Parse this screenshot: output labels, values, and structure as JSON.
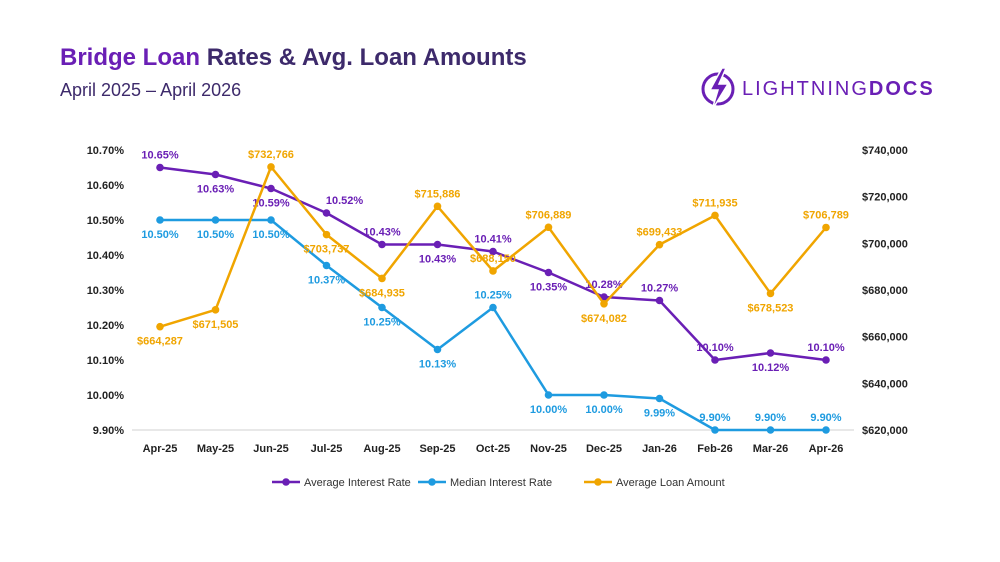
{
  "header": {
    "title_part1": "Bridge Loan",
    "title_part2": "Rates & Avg. Loan Amounts",
    "subtitle": "April 2025 – April 2026"
  },
  "logo": {
    "text_light": "LIGHTNING",
    "text_bold": "DOCS",
    "icon": "lightning-bolt-icon"
  },
  "colors": {
    "avg_rate": "#6a1fb5",
    "median_rate": "#1e9be0",
    "loan_amount": "#f0a500",
    "title": "#3d2a6b"
  },
  "chart_data": {
    "type": "line",
    "categories": [
      "Apr-25",
      "May-25",
      "Jun-25",
      "Jul-25",
      "Aug-25",
      "Sep-25",
      "Oct-25",
      "Nov-25",
      "Dec-25",
      "Jan-26",
      "Feb-26",
      "Mar-26",
      "Apr-26"
    ],
    "y_left": {
      "min": 9.9,
      "max": 10.7,
      "ticks": [
        "10.70%",
        "10.60%",
        "10.50%",
        "10.40%",
        "10.30%",
        "10.20%",
        "10.10%",
        "10.00%",
        "9.90%"
      ]
    },
    "y_right": {
      "min": 620000,
      "max": 740000,
      "ticks": [
        "$740,000",
        "$720,000",
        "$700,000",
        "$680,000",
        "$660,000",
        "$640,000",
        "$620,000"
      ]
    },
    "series": [
      {
        "name": "Average Interest Rate",
        "axis": "left",
        "values": [
          10.65,
          10.63,
          10.59,
          10.52,
          10.43,
          10.43,
          10.41,
          10.35,
          10.28,
          10.27,
          10.1,
          10.12,
          10.1
        ],
        "labels": [
          "10.65%",
          "10.63%",
          "10.59%",
          "10.52%",
          "10.43%",
          "10.43%",
          "10.41%",
          "10.35%",
          "10.28%",
          "10.27%",
          "10.10%",
          "10.12%",
          "10.10%"
        ]
      },
      {
        "name": "Median Interest Rate",
        "axis": "left",
        "values": [
          10.5,
          10.5,
          10.5,
          10.37,
          10.25,
          10.13,
          10.25,
          10.0,
          10.0,
          9.99,
          9.9,
          9.9,
          9.9
        ],
        "labels": [
          "10.50%",
          "10.50%",
          "10.50%",
          "10.37%",
          "10.25%",
          "10.13%",
          "10.25%",
          "10.00%",
          "10.00%",
          "9.99%",
          "9.90%",
          "9.90%",
          "9.90%"
        ]
      },
      {
        "name": "Average Loan Amount",
        "axis": "right",
        "values": [
          664287,
          671505,
          732766,
          703737,
          684935,
          715886,
          688150,
          706889,
          674082,
          699433,
          711935,
          678523,
          706789
        ],
        "labels": [
          "$664,287",
          "$671,505",
          "$732,766",
          "$703,737",
          "$684,935",
          "$715,886",
          "$688,150",
          "$706,889",
          "$674,082",
          "$699,433",
          "$711,935",
          "$678,523",
          "$706,789"
        ]
      }
    ],
    "legend_position": "bottom",
    "grid": false
  }
}
